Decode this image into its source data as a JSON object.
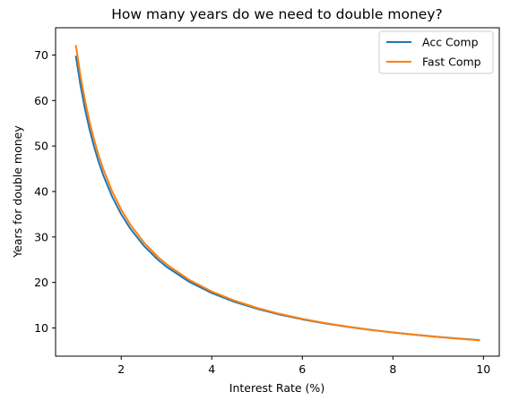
{
  "chart_data": {
    "type": "line",
    "title": "How many years do we need to double money?",
    "xlabel": "Interest Rate (%)",
    "ylabel": "Years for double money",
    "xlim": [
      0.55,
      10.35
    ],
    "ylim": [
      3.8,
      76.0
    ],
    "xticks": [
      2,
      4,
      6,
      8,
      10
    ],
    "yticks": [
      10,
      20,
      30,
      40,
      50,
      60,
      70
    ],
    "grid": false,
    "legend_position": "top-right",
    "x": [
      1.0,
      1.1,
      1.2,
      1.3,
      1.4,
      1.5,
      1.6,
      1.8,
      2.0,
      2.2,
      2.5,
      2.8,
      3.0,
      3.5,
      4.0,
      4.5,
      5.0,
      5.5,
      6.0,
      6.5,
      7.0,
      7.5,
      8.0,
      8.5,
      9.0,
      9.5,
      9.9
    ],
    "series": [
      {
        "name": "Acc Comp",
        "color": "#1f77b4",
        "values": [
          69.66,
          63.36,
          58.11,
          53.66,
          49.86,
          46.56,
          43.67,
          38.85,
          35.0,
          31.85,
          28.07,
          25.1,
          23.45,
          20.15,
          17.67,
          15.75,
          14.21,
          12.95,
          11.9,
          11.01,
          10.24,
          9.58,
          9.01,
          8.5,
          8.04,
          7.64,
          7.34
        ]
      },
      {
        "name": "Fast Comp",
        "color": "#ff7f0e",
        "values": [
          72.0,
          65.45,
          60.0,
          55.38,
          51.43,
          48.0,
          45.0,
          40.0,
          36.0,
          32.73,
          28.8,
          25.71,
          24.0,
          20.57,
          18.0,
          16.0,
          14.4,
          13.09,
          12.0,
          11.08,
          10.29,
          9.6,
          9.0,
          8.47,
          8.0,
          7.58,
          7.27
        ]
      }
    ]
  }
}
